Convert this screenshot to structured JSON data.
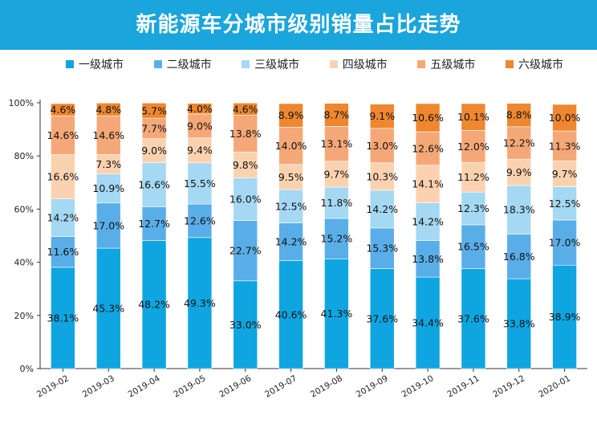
{
  "title": "新能源车分城市级别销量占比走势",
  "chart_data": {
    "type": "bar",
    "stacked": true,
    "title": "新能源车分城市级别销量占比走势",
    "categories": [
      "2019-02",
      "2019-03",
      "2019-04",
      "2019-05",
      "2019-06",
      "2019-07",
      "2019-08",
      "2019-09",
      "2019-10",
      "2019-11",
      "2019-12",
      "2020-01"
    ],
    "y_ticks": [
      "0%",
      "20%",
      "40%",
      "60%",
      "80%",
      "100%"
    ],
    "ylim": [
      0,
      100
    ],
    "legend_position": "top",
    "grid": false,
    "series": [
      {
        "name": "一级城市",
        "color": "#0ea5e0",
        "values": [
          38.1,
          45.3,
          48.2,
          49.3,
          33.0,
          40.6,
          41.3,
          37.6,
          34.4,
          37.6,
          33.8,
          38.9
        ],
        "labels": [
          "38.1%",
          "45.3%",
          "48.2%",
          "49.3%",
          "33.0%",
          "40.6%",
          "41.3%",
          "37.6%",
          "34.4%",
          "37.6%",
          "33.8%",
          "38.9%"
        ]
      },
      {
        "name": "二级城市",
        "color": "#5aaee8",
        "values": [
          11.6,
          17.0,
          12.7,
          12.6,
          22.7,
          14.2,
          15.2,
          15.3,
          13.8,
          16.5,
          16.8,
          17.0
        ],
        "labels": [
          "11.6%",
          "17.0%",
          "12.7%",
          "12.6%",
          "22.7%",
          "14.2%",
          "15.2%",
          "15.3%",
          "13.8%",
          "16.5%",
          "16.8%",
          "17.0%"
        ]
      },
      {
        "name": "三级城市",
        "color": "#a5d8f2",
        "values": [
          14.2,
          10.9,
          16.6,
          15.5,
          16.0,
          12.5,
          11.8,
          14.2,
          14.2,
          12.3,
          18.3,
          12.5
        ],
        "labels": [
          "14.2%",
          "10.9%",
          "16.6%",
          "15.5%",
          "16.0%",
          "12.5%",
          "11.8%",
          "14.2%",
          "14.2%",
          "12.3%",
          "18.3%",
          "12.5%"
        ]
      },
      {
        "name": "四级城市",
        "color": "#fbd2b0",
        "values": [
          16.6,
          7.3,
          9.0,
          9.4,
          9.8,
          9.5,
          9.7,
          10.3,
          14.1,
          11.2,
          9.9,
          9.7
        ],
        "labels": [
          "16.6%",
          "7.3%",
          "9.0%",
          "9.4%",
          "9.8%",
          "9.5%",
          "9.7%",
          "10.3%",
          "14.1%",
          "11.2%",
          "9.9%",
          "9.7%"
        ]
      },
      {
        "name": "五级城市",
        "color": "#f5a877",
        "values": [
          14.6,
          14.6,
          7.7,
          9.0,
          13.8,
          14.0,
          13.1,
          13.0,
          12.6,
          12.0,
          12.2,
          11.3
        ],
        "labels": [
          "14.6%",
          "14.6%",
          "7.7%",
          "9.0%",
          "13.8%",
          "14.0%",
          "13.1%",
          "13.0%",
          "12.6%",
          "12.0%",
          "12.2%",
          "11.3%"
        ]
      },
      {
        "name": "六级城市",
        "color": "#ee8730",
        "values": [
          4.6,
          4.8,
          5.7,
          4.0,
          4.6,
          8.9,
          8.7,
          9.1,
          10.6,
          10.1,
          8.8,
          10.0
        ],
        "labels": [
          "4.6%",
          "4.8%",
          "5.7%",
          "4.0%",
          "4.6%",
          "8.9%",
          "8.7%",
          "9.1%",
          "10.6%",
          "10.1%",
          "8.8%",
          "10.0%"
        ]
      }
    ]
  }
}
